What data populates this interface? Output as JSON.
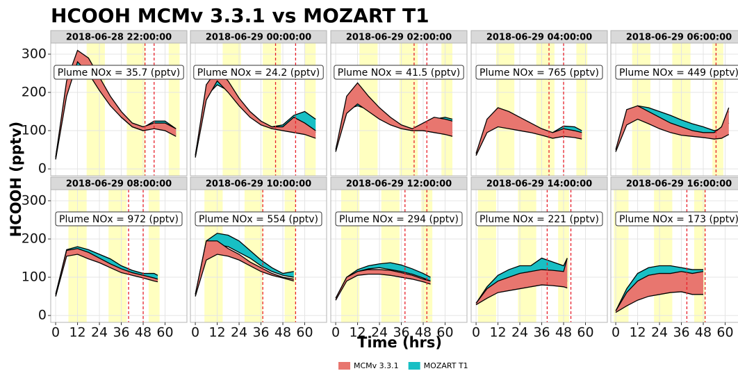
{
  "chart_data": {
    "type": "ribbon",
    "title": "HCOOH MCMv 3.3.1 vs MOZART T1",
    "xlabel": "Time (hrs)",
    "ylabel": "HCOOH (pptv)",
    "xlim": [
      -2.7,
      72
    ],
    "ylim": [
      -18,
      329
    ],
    "xticks": [
      0,
      12,
      24,
      36,
      48,
      60
    ],
    "yticks": [
      0,
      100,
      200,
      300
    ],
    "grid": true,
    "legend": "bottom",
    "series": [
      {
        "name": "MCMv 3.3.1",
        "color": "#e8766f"
      },
      {
        "name": "MOZART T1",
        "color": "#18bfc4"
      }
    ],
    "panels": [
      {
        "title": "2018-06-28 22:00:00",
        "annotation": "Plume NOx = 35.7 (pptv)",
        "daylight": [
          [
            17,
            27
          ],
          [
            39,
            49
          ],
          [
            62,
            68
          ]
        ],
        "markers": [
          49,
          54
        ],
        "x": [
          0,
          6,
          12,
          18,
          24,
          30,
          36,
          42,
          48,
          54,
          60,
          66
        ],
        "ribbons": [
          {
            "lower": [
              25,
              190,
              280,
              250,
              205,
              165,
              135,
              110,
              100,
              105,
              100,
              85
            ],
            "upper": [
              30,
              230,
              310,
              290,
              240,
              190,
              150,
              120,
              110,
              120,
              120,
              105
            ]
          },
          {
            "lower": [
              25,
              200,
              270,
              250,
              210,
              170,
              135,
              110,
              100,
              110,
              105,
              90
            ],
            "upper": [
              30,
              215,
              290,
              270,
              225,
              180,
              145,
              118,
              108,
              125,
              125,
              105
            ]
          }
        ]
      },
      {
        "title": "2018-06-29 00:00:00",
        "annotation": "Plume NOx = 24.2 (pptv)",
        "daylight": [
          [
            15,
            25
          ],
          [
            37,
            47
          ],
          [
            60,
            66
          ]
        ],
        "markers": [
          44,
          55
        ],
        "x": [
          0,
          6,
          12,
          18,
          24,
          30,
          36,
          42,
          48,
          54,
          60,
          66
        ],
        "ribbons": [
          {
            "lower": [
              30,
              180,
              230,
              200,
              165,
              135,
              115,
              105,
              100,
              95,
              90,
              80
            ],
            "upper": [
              35,
              220,
              260,
              230,
              185,
              150,
              125,
              110,
              110,
              135,
              120,
              100
            ]
          },
          {
            "lower": [
              30,
              190,
              220,
              205,
              170,
              140,
              118,
              105,
              105,
              115,
              115,
              95
            ],
            "upper": [
              35,
              210,
              240,
              215,
              180,
              148,
              124,
              110,
              115,
              140,
              150,
              130
            ]
          }
        ]
      },
      {
        "title": "2018-06-29 02:00:00",
        "annotation": "Plume NOx = 41.5 (pptv)",
        "daylight": [
          [
            13,
            23
          ],
          [
            35,
            45
          ],
          [
            58,
            64
          ]
        ],
        "markers": [
          43,
          50
        ],
        "x": [
          0,
          6,
          12,
          18,
          24,
          30,
          36,
          42,
          48,
          54,
          60,
          64
        ],
        "ribbons": [
          {
            "lower": [
              45,
              145,
              170,
              150,
              130,
              115,
              105,
              100,
              100,
              95,
              90,
              85
            ],
            "upper": [
              50,
              190,
              225,
              190,
              160,
              135,
              115,
              105,
              120,
              135,
              130,
              125
            ]
          },
          {
            "lower": [
              45,
              155,
              165,
              155,
              135,
              118,
              106,
              100,
              105,
              110,
              110,
              95
            ],
            "upper": [
              50,
              170,
              185,
              168,
              145,
              125,
              110,
              103,
              115,
              130,
              135,
              130
            ]
          }
        ]
      },
      {
        "title": "2018-06-29 04:00:00",
        "annotation": "Plume NOx = 765 (pptv)",
        "daylight": [
          [
            11,
            21
          ],
          [
            33,
            43
          ],
          [
            55,
            61
          ]
        ],
        "markers": [
          40,
          48
        ],
        "x": [
          0,
          6,
          12,
          18,
          24,
          30,
          36,
          42,
          48,
          54,
          58
        ],
        "ribbons": [
          {
            "lower": [
              35,
              95,
              110,
              105,
              100,
              95,
              88,
              80,
              85,
              82,
              78
            ],
            "upper": [
              40,
              130,
              160,
              150,
              135,
              120,
              105,
              95,
              105,
              100,
              95
            ]
          },
          {
            "lower": [
              35,
              110,
              125,
              120,
              112,
              105,
              95,
              88,
              100,
              95,
              88
            ],
            "upper": [
              40,
              125,
              140,
              138,
              128,
              115,
              100,
              95,
              112,
              110,
              100
            ]
          }
        ]
      },
      {
        "title": "2018-06-29 06:00:00",
        "annotation": "Plume NOx = 449 (pptv)",
        "daylight": [
          [
            9,
            19
          ],
          [
            31,
            41
          ],
          [
            53,
            59
          ]
        ],
        "markers": [
          55
        ],
        "x": [
          0,
          6,
          12,
          18,
          24,
          30,
          36,
          42,
          48,
          54,
          58,
          62
        ],
        "ribbons": [
          {
            "lower": [
              45,
              115,
              130,
              118,
              105,
              95,
              88,
              85,
              82,
              78,
              80,
              90
            ],
            "upper": [
              50,
              155,
              165,
              150,
              135,
              120,
              110,
              100,
              95,
              95,
              110,
              160
            ]
          },
          {
            "lower": [
              45,
              135,
              150,
              140,
              125,
              112,
              102,
              95,
              92,
              90,
              95,
              120
            ],
            "upper": [
              50,
              150,
              165,
              160,
              150,
              140,
              128,
              118,
              110,
              100,
              105,
              150
            ]
          }
        ]
      },
      {
        "title": "2018-06-29 08:00:00",
        "annotation": "Plume NOx = 972 (pptv)",
        "daylight": [
          [
            7,
            17
          ],
          [
            29,
            39
          ],
          [
            51,
            57
          ]
        ],
        "markers": [
          40,
          48
        ],
        "x": [
          0,
          6,
          12,
          18,
          24,
          30,
          36,
          42,
          48,
          54,
          56
        ],
        "ribbons": [
          {
            "lower": [
              50,
              155,
              160,
              148,
              138,
              125,
              112,
              105,
              98,
              90,
              88
            ],
            "upper": [
              55,
              170,
              175,
              165,
              150,
              135,
              122,
              112,
              105,
              98,
              95
            ]
          },
          {
            "lower": [
              50,
              160,
              168,
              155,
              145,
              132,
              118,
              108,
              102,
              96,
              92
            ],
            "upper": [
              55,
              172,
              180,
              172,
              160,
              148,
              130,
              118,
              110,
              110,
              105
            ]
          }
        ]
      },
      {
        "title": "2018-06-29 10:00:00",
        "annotation": "Plume NOx = 554 (pptv)",
        "daylight": [
          [
            5,
            15
          ],
          [
            27,
            37
          ],
          [
            49,
            55
          ]
        ],
        "markers": [
          37,
          55
        ],
        "x": [
          0,
          6,
          12,
          18,
          24,
          30,
          36,
          42,
          48,
          54
        ],
        "ribbons": [
          {
            "lower": [
              50,
              145,
              160,
              155,
              145,
              130,
              115,
              105,
              98,
              90
            ],
            "upper": [
              55,
              195,
              195,
              175,
              160,
              140,
              125,
              110,
              100,
              95
            ]
          },
          {
            "lower": [
              50,
              170,
              185,
              180,
              165,
              150,
              130,
              115,
              105,
              100
            ],
            "upper": [
              55,
              195,
              215,
              210,
              195,
              170,
              145,
              125,
              110,
              115
            ]
          }
        ]
      },
      {
        "title": "2018-06-29 12:00:00",
        "annotation": "Plume NOx = 294 (pptv)",
        "daylight": [
          [
            3,
            13
          ],
          [
            25,
            35
          ],
          [
            47,
            53
          ]
        ],
        "markers": [
          38,
          50
        ],
        "x": [
          0,
          6,
          12,
          18,
          24,
          30,
          36,
          42,
          48,
          52
        ],
        "ribbons": [
          {
            "lower": [
              40,
              90,
              105,
              108,
              108,
              105,
              100,
              95,
              88,
              82
            ],
            "upper": [
              45,
              100,
              115,
              120,
              120,
              118,
              112,
              105,
              95,
              90
            ]
          },
          {
            "lower": [
              40,
              95,
              115,
              122,
              125,
              120,
              115,
              108,
              98,
              90
            ],
            "upper": [
              45,
              100,
              120,
              130,
              135,
              138,
              132,
              122,
              110,
              100
            ]
          }
        ]
      },
      {
        "title": "2018-06-29 14:00:00",
        "annotation": "Plume NOx = 221 (pptv)",
        "daylight": [
          [
            1,
            11
          ],
          [
            23,
            33
          ],
          [
            45,
            51
          ]
        ],
        "markers": [
          39,
          52
        ],
        "x": [
          0,
          6,
          12,
          18,
          24,
          30,
          36,
          42,
          48,
          50
        ],
        "ribbons": [
          {
            "lower": [
              28,
              45,
              60,
              65,
              70,
              75,
              80,
              78,
              75,
              72
            ],
            "upper": [
              32,
              70,
              90,
              100,
              110,
              115,
              120,
              118,
              115,
              150
            ]
          },
          {
            "lower": [
              28,
              55,
              75,
              85,
              90,
              95,
              100,
              95,
              90,
              90
            ],
            "upper": [
              32,
              75,
              105,
              120,
              130,
              130,
              150,
              140,
              130,
              150
            ]
          }
        ]
      },
      {
        "title": "2018-06-29 16:00:00",
        "annotation": "Plume NOx = 173 (pptv)",
        "daylight": [
          [
            -1,
            7
          ],
          [
            21,
            31
          ],
          [
            43,
            49
          ]
        ],
        "markers": [
          39,
          49
        ],
        "x": [
          0,
          6,
          12,
          18,
          24,
          30,
          36,
          42,
          48
        ],
        "ribbons": [
          {
            "lower": [
              8,
              25,
              40,
              50,
              55,
              60,
              62,
              55,
              55
            ],
            "upper": [
              12,
              60,
              90,
              105,
              110,
              110,
              115,
              110,
              115
            ]
          },
          {
            "lower": [
              8,
              35,
              60,
              75,
              80,
              85,
              85,
              80,
              70
            ],
            "upper": [
              12,
              70,
              110,
              125,
              130,
              130,
              125,
              120,
              120
            ]
          }
        ]
      }
    ]
  }
}
